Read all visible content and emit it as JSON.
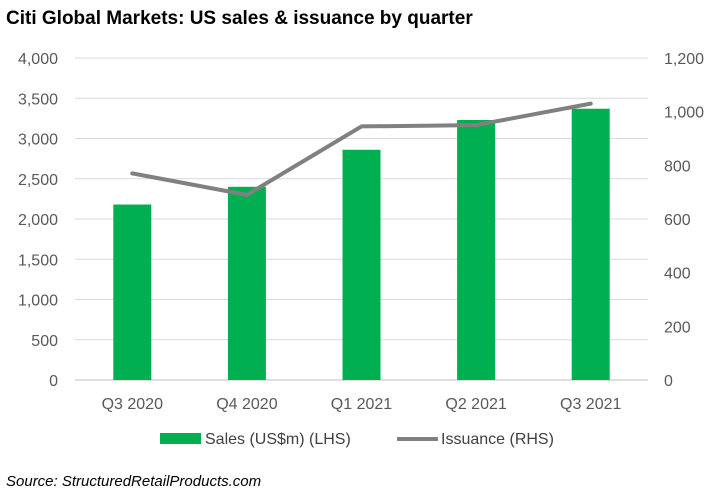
{
  "chart_data": {
    "type": "bar",
    "title": "Citi Global Markets: US sales & issuance by quarter",
    "categories": [
      "Q3 2020",
      "Q4 2020",
      "Q1 2021",
      "Q2 2021",
      "Q3 2021"
    ],
    "series": [
      {
        "name": "Sales (US$m) (LHS)",
        "type": "bar",
        "axis": "left",
        "color": "#00b050",
        "values": [
          2180,
          2400,
          2860,
          3230,
          3370
        ]
      },
      {
        "name": "Issuance (RHS)",
        "type": "line",
        "axis": "right",
        "color": "#808080",
        "values": [
          770,
          690,
          945,
          950,
          1030
        ]
      }
    ],
    "y_left": {
      "min": 0,
      "max": 4000,
      "step": 500,
      "ticks": [
        "0",
        "500",
        "1,000",
        "1,500",
        "2,000",
        "2,500",
        "3,000",
        "3,500",
        "4,000"
      ]
    },
    "y_right": {
      "min": 0,
      "max": 1200,
      "step": 200,
      "ticks": [
        "0",
        "200",
        "400",
        "600",
        "800",
        "1,000",
        "1,200"
      ]
    },
    "grid": true,
    "legend_position": "bottom",
    "source": "Source: StructuredRetailProducts.com"
  }
}
